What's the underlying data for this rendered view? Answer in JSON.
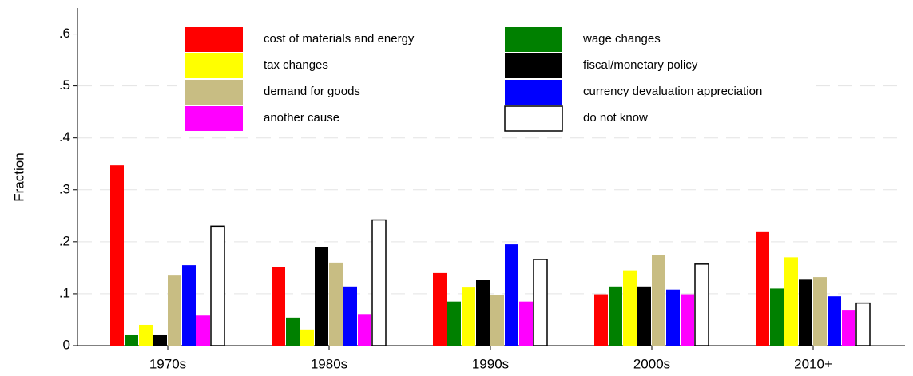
{
  "chart_data": {
    "type": "bar",
    "y_label": "Fraction",
    "categories": [
      "1970s",
      "1980s",
      "1990s",
      "2000s",
      "2010+"
    ],
    "series": [
      {
        "name": "cost of materials and energy",
        "color": "#ff0000",
        "values": [
          0.347,
          0.152,
          0.14,
          0.099,
          0.22
        ]
      },
      {
        "name": "wage changes",
        "color": "#008000",
        "values": [
          0.02,
          0.054,
          0.085,
          0.114,
          0.11
        ]
      },
      {
        "name": "tax changes",
        "color": "#ffff00",
        "values": [
          0.04,
          0.031,
          0.112,
          0.145,
          0.17
        ]
      },
      {
        "name": "fiscal/monetary policy",
        "color": "#000000",
        "values": [
          0.02,
          0.19,
          0.126,
          0.114,
          0.127
        ]
      },
      {
        "name": "demand for goods",
        "color": "#c8bd83",
        "values": [
          0.135,
          0.16,
          0.098,
          0.174,
          0.132
        ]
      },
      {
        "name": "currency devaluation appreciation",
        "color": "#0000ff",
        "values": [
          0.155,
          0.114,
          0.195,
          0.108,
          0.095
        ]
      },
      {
        "name": "another cause",
        "color": "#ff00ff",
        "values": [
          0.058,
          0.061,
          0.085,
          0.099,
          0.069
        ]
      },
      {
        "name": "do not know",
        "color": "#ffffff",
        "values": [
          0.23,
          0.242,
          0.166,
          0.157,
          0.082
        ]
      }
    ],
    "ylim": [
      0,
      0.65
    ],
    "yticks": [
      0,
      {
        "value": 0.1,
        "label": ".1"
      },
      {
        "value": 0.2,
        "label": ".2"
      },
      {
        "value": 0.3,
        "label": ".3"
      },
      {
        "value": 0.4,
        "label": ".4"
      },
      {
        "value": 0.5,
        "label": ".5"
      },
      {
        "value": 0.6,
        "label": ".6"
      }
    ],
    "grid": true,
    "legend_position": "top"
  }
}
